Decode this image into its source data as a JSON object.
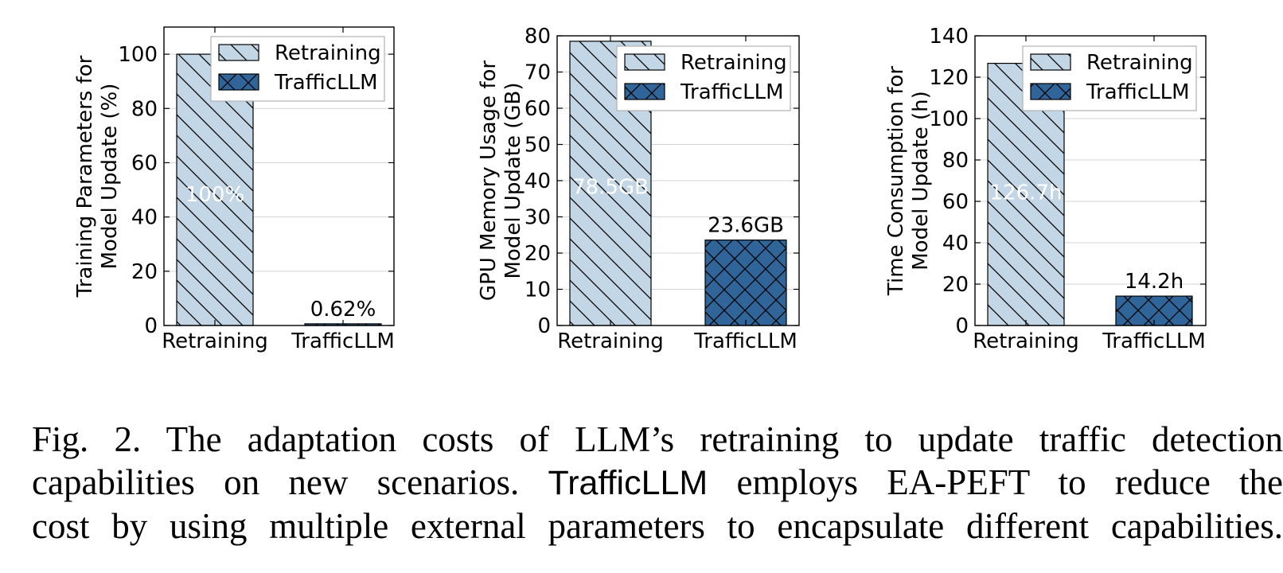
{
  "chart_data": [
    {
      "type": "bar",
      "categories": [
        "Retraining",
        "TrafficLLM"
      ],
      "values": [
        100,
        0.62
      ],
      "value_labels": [
        "100%",
        "0.62%"
      ],
      "ylabel_lines": [
        "Training Parameters for",
        "Model Update (%)"
      ],
      "ylim": [
        0,
        110
      ],
      "yticks": [
        0,
        20,
        40,
        60,
        80,
        100
      ],
      "legend": [
        "Retraining",
        "TrafficLLM"
      ],
      "legend_position": "top-right",
      "grid": true
    },
    {
      "type": "bar",
      "categories": [
        "Retraining",
        "TrafficLLM"
      ],
      "values": [
        78.5,
        23.6
      ],
      "value_labels": [
        "78.5GB",
        "23.6GB"
      ],
      "ylabel_lines": [
        "GPU Memory Usage for",
        "Model Update (GB)"
      ],
      "ylim": [
        0,
        80
      ],
      "yticks": [
        0,
        10,
        20,
        30,
        40,
        50,
        60,
        70,
        80
      ],
      "legend": [
        "Retraining",
        "TrafficLLM"
      ],
      "legend_position": "top-right",
      "grid": true
    },
    {
      "type": "bar",
      "categories": [
        "Retraining",
        "TrafficLLM"
      ],
      "values": [
        126.7,
        14.2
      ],
      "value_labels": [
        "126.7h",
        "14.2h"
      ],
      "ylabel_lines": [
        "Time Consumption for",
        "Model Update (h)"
      ],
      "ylim": [
        0,
        140
      ],
      "yticks": [
        0,
        20,
        40,
        60,
        80,
        100,
        120,
        140
      ],
      "legend": [
        "Retraining",
        "TrafficLLM"
      ],
      "legend_position": "top-right",
      "grid": true
    }
  ],
  "colors": {
    "retraining_fill": "#c3d6e6",
    "trafficllm_fill": "#2f6598",
    "grid": "#d5d5d5"
  },
  "caption": {
    "line1": "Fig. 2.  The adaptation costs of LLM’s retraining to update traffic detection",
    "line2_pre": "capabilities on new scenarios.",
    "line2_name": "TrafficLLM",
    "line2_post": "employs EA-PEFT to reduce the",
    "line3": "cost by using multiple external parameters to encapsulate different capabilities."
  }
}
